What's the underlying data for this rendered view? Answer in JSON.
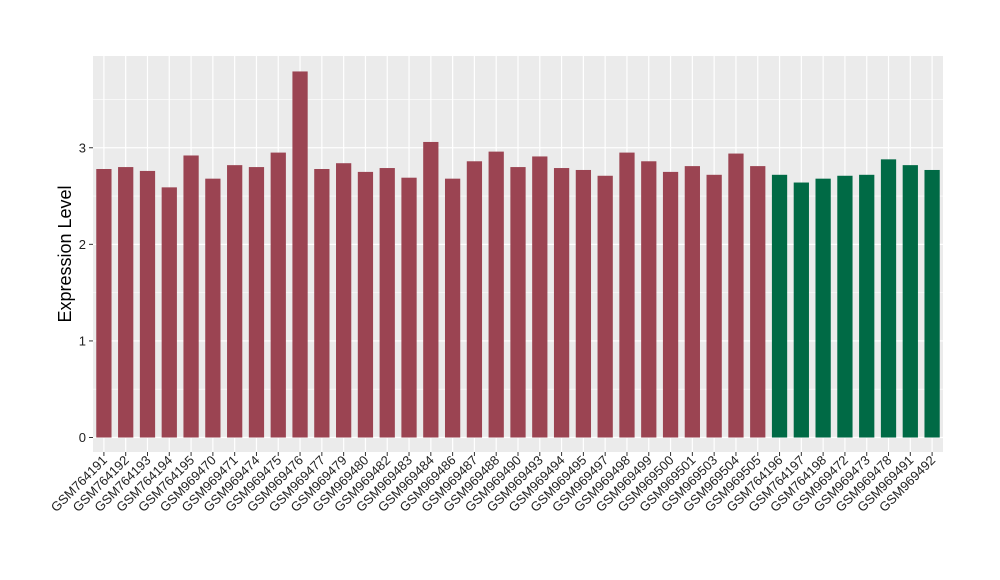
{
  "chart_data": {
    "type": "bar",
    "title": "",
    "xlabel": "",
    "ylabel": "Expression Level",
    "ylim": [
      -0.15,
      3.95
    ],
    "yticks": [
      0,
      1,
      2,
      3
    ],
    "grid": true,
    "legend": "none",
    "colors": {
      "group1": "#9B4452",
      "group2": "#006A45",
      "panel": "#EBEBEB",
      "gridline": "#FFFFFF"
    },
    "categories": [
      "GSM764191",
      "GSM764192",
      "GSM764193",
      "GSM764194",
      "GSM764195",
      "GSM969470",
      "GSM969471",
      "GSM969474",
      "GSM969475",
      "GSM969476",
      "GSM969477",
      "GSM969479",
      "GSM969480",
      "GSM969482",
      "GSM969483",
      "GSM969484",
      "GSM969486",
      "GSM969487",
      "GSM969488",
      "GSM969490",
      "GSM969493",
      "GSM969494",
      "GSM969495",
      "GSM969497",
      "GSM969498",
      "GSM969499",
      "GSM969500",
      "GSM969501",
      "GSM969503",
      "GSM969504",
      "GSM969505",
      "GSM764196",
      "GSM764197",
      "GSM764198",
      "GSM969472",
      "GSM969473",
      "GSM969478",
      "GSM969491",
      "GSM969492"
    ],
    "values": [
      2.78,
      2.8,
      2.76,
      2.59,
      2.92,
      2.68,
      2.82,
      2.8,
      2.95,
      3.79,
      2.78,
      2.84,
      2.75,
      2.79,
      2.69,
      3.06,
      2.68,
      2.86,
      2.96,
      2.8,
      2.91,
      2.79,
      2.77,
      2.71,
      2.95,
      2.86,
      2.75,
      2.81,
      2.72,
      2.94,
      2.81,
      2.72,
      2.64,
      2.68,
      2.71,
      2.72,
      2.88,
      2.82,
      2.77
    ],
    "groups": [
      1,
      1,
      1,
      1,
      1,
      1,
      1,
      1,
      1,
      1,
      1,
      1,
      1,
      1,
      1,
      1,
      1,
      1,
      1,
      1,
      1,
      1,
      1,
      1,
      1,
      1,
      1,
      1,
      1,
      1,
      1,
      2,
      2,
      2,
      2,
      2,
      2,
      2,
      2
    ]
  }
}
